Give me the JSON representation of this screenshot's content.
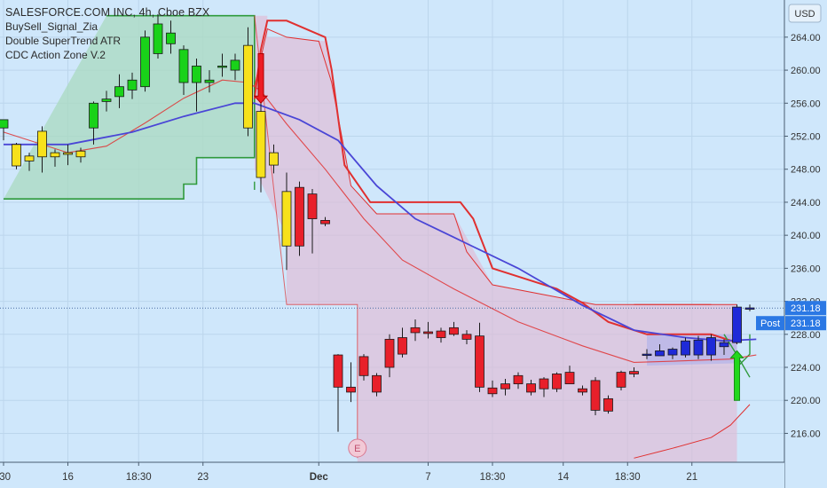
{
  "header": {
    "symbol_title": "SALESFORCE.COM INC, 4h, Cboe BZX"
  },
  "indicators": [
    "BuySell_Signal_Zia",
    "Double SuperTrend ATR",
    "CDC Action Zone V.2"
  ],
  "currency_label": "USD",
  "price_badges": {
    "last": "231.18",
    "post_label": "Post",
    "post": "231.18"
  },
  "event_marker": "E",
  "colors": {
    "background": "#cfe7fb",
    "bull_candle": "#19d219",
    "bear_candle": "#e8202a",
    "yellow_candle": "#f7e11b",
    "blue_candle": "#1f2ad8",
    "ema_blue": "#4a46d6",
    "supertrend_green": "#2f9a3c",
    "supertrend_red": "#e03030",
    "green_zone": "#a9d9c0",
    "red_zone": "#e2b8d2",
    "badge_blue": "#2b78e4"
  },
  "chart_data": {
    "type": "candlestick",
    "title": "SALESFORCE.COM INC, 4h, Cboe BZX",
    "y_axis": {
      "unit": "USD",
      "ylim": [
        212.5,
        268.5
      ],
      "ticks": [
        "216.00",
        "220.00",
        "224.00",
        "228.00",
        "232.00",
        "236.00",
        "240.00",
        "244.00",
        "248.00",
        "252.00",
        "256.00",
        "260.00",
        "264.00"
      ]
    },
    "x_axis": {
      "ticks": [
        {
          "i": 0,
          "label": ":30"
        },
        {
          "i": 10,
          "label": "16"
        },
        {
          "i": 21,
          "label": "18:30"
        },
        {
          "i": 31,
          "label": "23"
        },
        {
          "i": 49,
          "label": "Dec"
        },
        {
          "i": 66,
          "label": "7"
        },
        {
          "i": 76,
          "label": "18:30"
        },
        {
          "i": 87,
          "label": "14"
        },
        {
          "i": 97,
          "label": "18:30"
        },
        {
          "i": 107,
          "label": "21"
        }
      ]
    },
    "candles": [
      {
        "i": 0,
        "o": 253,
        "h": 254,
        "l": 251.5,
        "c": 254,
        "col": "bull"
      },
      {
        "i": 2,
        "o": 248.4,
        "h": 251.2,
        "l": 248.0,
        "c": 251.0,
        "col": "yellow"
      },
      {
        "i": 4,
        "o": 249.0,
        "h": 250.0,
        "l": 247.8,
        "c": 249.6,
        "col": "yellow"
      },
      {
        "i": 6,
        "o": 249.5,
        "h": 253.2,
        "l": 247.6,
        "c": 252.6,
        "col": "yellow"
      },
      {
        "i": 8,
        "o": 249.5,
        "h": 250.4,
        "l": 248.3,
        "c": 250.0,
        "col": "yellow"
      },
      {
        "i": 10,
        "o": 249.8,
        "h": 251.0,
        "l": 248.5,
        "c": 250.0,
        "col": "yellow"
      },
      {
        "i": 12,
        "o": 249.5,
        "h": 250.6,
        "l": 248.8,
        "c": 250.2,
        "col": "yellow"
      },
      {
        "i": 14,
        "o": 253.0,
        "h": 256.2,
        "l": 251.0,
        "c": 256.0,
        "col": "bull"
      },
      {
        "i": 16,
        "o": 256.2,
        "h": 257.5,
        "l": 255.0,
        "c": 256.5,
        "col": "bull"
      },
      {
        "i": 18,
        "o": 256.8,
        "h": 259.5,
        "l": 255.4,
        "c": 258.0,
        "col": "bull"
      },
      {
        "i": 20,
        "o": 257.6,
        "h": 259.7,
        "l": 256.5,
        "c": 258.8,
        "col": "bull"
      },
      {
        "i": 22,
        "o": 258.0,
        "h": 264.8,
        "l": 257.4,
        "c": 264.0,
        "col": "bull"
      },
      {
        "i": 24,
        "o": 262.0,
        "h": 266.8,
        "l": 261.4,
        "c": 265.6,
        "col": "bull"
      },
      {
        "i": 26,
        "o": 264.5,
        "h": 266.0,
        "l": 262.0,
        "c": 263.2,
        "col": "bull"
      },
      {
        "i": 28,
        "o": 262.5,
        "h": 263.0,
        "l": 257.0,
        "c": 258.5,
        "col": "bull"
      },
      {
        "i": 30,
        "o": 260.5,
        "h": 261.4,
        "l": 255.0,
        "c": 258.5,
        "col": "bull"
      },
      {
        "i": 32,
        "o": 258.5,
        "h": 260.0,
        "l": 257.3,
        "c": 258.8,
        "col": "bull"
      },
      {
        "i": 34,
        "o": 260.4,
        "h": 262.0,
        "l": 259.2,
        "c": 260.5,
        "col": "bull"
      },
      {
        "i": 36,
        "o": 260.0,
        "h": 262.0,
        "l": 258.8,
        "c": 261.2,
        "col": "bull"
      },
      {
        "i": 38,
        "o": 253.0,
        "h": 265.2,
        "l": 252.0,
        "c": 263.0,
        "col": "yellow"
      },
      {
        "i": 40,
        "o": 255.0,
        "h": 256.5,
        "l": 245.2,
        "c": 247.0,
        "col": "yellow"
      },
      {
        "i": 42,
        "o": 250.0,
        "h": 251.0,
        "l": 247.5,
        "c": 248.5,
        "col": "yellow"
      },
      {
        "i": 44,
        "o": 245.3,
        "h": 247.6,
        "l": 235.8,
        "c": 238.7,
        "col": "yellow"
      },
      {
        "i": 46,
        "o": 245.8,
        "h": 246.5,
        "l": 237.5,
        "c": 238.7,
        "col": "bear"
      },
      {
        "i": 48,
        "o": 245.0,
        "h": 245.6,
        "l": 237.8,
        "c": 242.0,
        "col": "bear"
      },
      {
        "i": 50,
        "o": 241.8,
        "h": 242.2,
        "l": 241.1,
        "c": 241.4,
        "col": "bear"
      },
      {
        "i": 52,
        "o": 225.5,
        "h": 225.6,
        "l": 216.2,
        "c": 221.6,
        "col": "bear"
      },
      {
        "i": 54,
        "o": 221.6,
        "h": 224.6,
        "l": 219.8,
        "c": 221.0,
        "col": "bear"
      },
      {
        "i": 56,
        "o": 223.0,
        "h": 225.6,
        "l": 222.4,
        "c": 225.3,
        "col": "bear"
      },
      {
        "i": 58,
        "o": 221.0,
        "h": 223.3,
        "l": 220.5,
        "c": 223.0,
        "col": "bear"
      },
      {
        "i": 60,
        "o": 224.0,
        "h": 228.0,
        "l": 222.8,
        "c": 227.4,
        "col": "bear"
      },
      {
        "i": 62,
        "o": 225.6,
        "h": 228.8,
        "l": 225.2,
        "c": 227.6,
        "col": "bear"
      },
      {
        "i": 64,
        "o": 228.2,
        "h": 229.8,
        "l": 227.2,
        "c": 228.8,
        "col": "bear"
      },
      {
        "i": 66,
        "o": 228.3,
        "h": 229.5,
        "l": 227.5,
        "c": 228.1,
        "col": "bear"
      },
      {
        "i": 68,
        "o": 227.6,
        "h": 228.8,
        "l": 227.0,
        "c": 228.4,
        "col": "bear"
      },
      {
        "i": 70,
        "o": 228.8,
        "h": 229.5,
        "l": 227.8,
        "c": 228.0,
        "col": "bear"
      },
      {
        "i": 72,
        "o": 227.4,
        "h": 228.5,
        "l": 226.8,
        "c": 228.0,
        "col": "bear"
      },
      {
        "i": 74,
        "o": 227.8,
        "h": 229.4,
        "l": 221.0,
        "c": 221.6,
        "col": "bear"
      },
      {
        "i": 76,
        "o": 221.5,
        "h": 222.4,
        "l": 220.4,
        "c": 220.8,
        "col": "bear"
      },
      {
        "i": 78,
        "o": 221.4,
        "h": 222.6,
        "l": 220.6,
        "c": 222.0,
        "col": "bear"
      },
      {
        "i": 80,
        "o": 222.0,
        "h": 223.4,
        "l": 221.4,
        "c": 223.0,
        "col": "bear"
      },
      {
        "i": 82,
        "o": 221.0,
        "h": 222.5,
        "l": 220.6,
        "c": 222.0,
        "col": "bear"
      },
      {
        "i": 84,
        "o": 221.4,
        "h": 222.8,
        "l": 220.4,
        "c": 222.6,
        "col": "bear"
      },
      {
        "i": 86,
        "o": 221.4,
        "h": 223.4,
        "l": 221.0,
        "c": 223.2,
        "col": "bear"
      },
      {
        "i": 88,
        "o": 223.4,
        "h": 224.2,
        "l": 222.0,
        "c": 222.0,
        "col": "bear"
      },
      {
        "i": 90,
        "o": 221.4,
        "h": 221.8,
        "l": 220.6,
        "c": 221.0,
        "col": "bear"
      },
      {
        "i": 92,
        "o": 222.4,
        "h": 222.8,
        "l": 218.2,
        "c": 218.8,
        "col": "bear"
      },
      {
        "i": 94,
        "o": 220.2,
        "h": 220.6,
        "l": 218.4,
        "c": 218.7,
        "col": "bear"
      },
      {
        "i": 96,
        "o": 221.6,
        "h": 223.6,
        "l": 221.2,
        "c": 223.4,
        "col": "bear"
      },
      {
        "i": 98,
        "o": 223.5,
        "h": 224.0,
        "l": 222.8,
        "c": 223.2,
        "col": "bear"
      },
      {
        "i": 100,
        "o": 225.5,
        "h": 226.2,
        "l": 225.0,
        "c": 225.6,
        "col": "blue"
      },
      {
        "i": 102,
        "o": 226.0,
        "h": 226.8,
        "l": 225.4,
        "c": 225.4,
        "col": "blue"
      },
      {
        "i": 104,
        "o": 225.5,
        "h": 226.4,
        "l": 225.0,
        "c": 226.2,
        "col": "blue"
      },
      {
        "i": 106,
        "o": 225.5,
        "h": 227.6,
        "l": 225.2,
        "c": 227.2,
        "col": "blue"
      },
      {
        "i": 108,
        "o": 225.5,
        "h": 227.8,
        "l": 225.0,
        "c": 227.3,
        "col": "blue"
      },
      {
        "i": 110,
        "o": 225.5,
        "h": 228.0,
        "l": 224.8,
        "c": 227.6,
        "col": "blue"
      },
      {
        "i": 112,
        "o": 226.5,
        "h": 227.4,
        "l": 225.5,
        "c": 227.0,
        "col": "blue"
      },
      {
        "i": 114,
        "o": 227.0,
        "h": 231.6,
        "l": 226.8,
        "c": 231.3,
        "col": "blue"
      },
      {
        "i": 116,
        "o": 231.2,
        "h": 231.6,
        "l": 230.8,
        "c": 231.2,
        "col": "blue"
      }
    ],
    "ema_blue": [
      [
        0,
        251.0
      ],
      [
        10,
        251.0
      ],
      [
        20,
        252.5
      ],
      [
        28,
        254.4
      ],
      [
        36,
        256.0
      ],
      [
        39,
        256.0
      ],
      [
        46,
        254.0
      ],
      [
        52,
        251.5
      ],
      [
        58,
        246.0
      ],
      [
        64,
        242.0
      ],
      [
        72,
        239.0
      ],
      [
        80,
        236.0
      ],
      [
        90,
        231.5
      ],
      [
        98,
        228.5
      ],
      [
        106,
        227.6
      ],
      [
        112,
        227.2
      ],
      [
        117,
        227.4
      ]
    ],
    "ema_red": [
      [
        0,
        252.5
      ],
      [
        10,
        250.0
      ],
      [
        16,
        250.8
      ],
      [
        22,
        253.6
      ],
      [
        28,
        256.6
      ],
      [
        34,
        258.8
      ],
      [
        38,
        258.5
      ],
      [
        40,
        257.5
      ],
      [
        44,
        253.5
      ],
      [
        50,
        248.0
      ],
      [
        56,
        242.0
      ],
      [
        62,
        237.0
      ],
      [
        70,
        233.5
      ],
      [
        80,
        229.5
      ],
      [
        90,
        226.6
      ],
      [
        98,
        224.6
      ],
      [
        106,
        224.8
      ],
      [
        113,
        225.0
      ],
      [
        117,
        225.5
      ]
    ],
    "supertrend_green": [
      [
        0,
        244.4
      ],
      [
        28,
        244.4
      ],
      [
        28,
        246.2
      ],
      [
        30,
        246.2
      ],
      [
        30,
        249.4
      ],
      [
        39,
        249.4
      ],
      [
        39,
        266.6
      ],
      [
        16,
        266.6
      ]
    ],
    "supertrend_red_upper": [
      [
        39,
        256.5
      ],
      [
        40,
        262.5
      ],
      [
        41,
        266.0
      ],
      [
        44,
        266.0
      ],
      [
        50,
        264.0
      ],
      [
        51,
        260.0
      ],
      [
        53,
        248.5
      ],
      [
        57,
        244.0
      ],
      [
        71,
        244.0
      ],
      [
        73,
        242.0
      ],
      [
        76,
        236.0
      ],
      [
        80,
        235.0
      ],
      [
        86,
        233.5
      ],
      [
        90,
        231.8
      ],
      [
        94,
        229.5
      ],
      [
        100,
        228.0
      ],
      [
        110,
        228.0
      ],
      [
        114,
        227.0
      ]
    ],
    "supertrend_red_lower": [
      [
        39,
        258.0
      ],
      [
        41,
        265.0
      ],
      [
        44,
        264.0
      ],
      [
        49,
        263.5
      ],
      [
        51,
        258.5
      ],
      [
        54,
        246.0
      ],
      [
        58,
        242.6
      ],
      [
        70,
        242.6
      ],
      [
        72,
        238.0
      ],
      [
        76,
        234.0
      ],
      [
        86,
        232.5
      ],
      [
        92,
        231.6
      ],
      [
        110,
        231.6
      ]
    ],
    "arrows": [
      {
        "i": 40,
        "dir": "down",
        "color": "red",
        "top": 262.0,
        "bottom": 256.0
      },
      {
        "i": 114,
        "dir": "up",
        "color": "green",
        "top": 226.0,
        "bottom": 220.0
      }
    ]
  }
}
